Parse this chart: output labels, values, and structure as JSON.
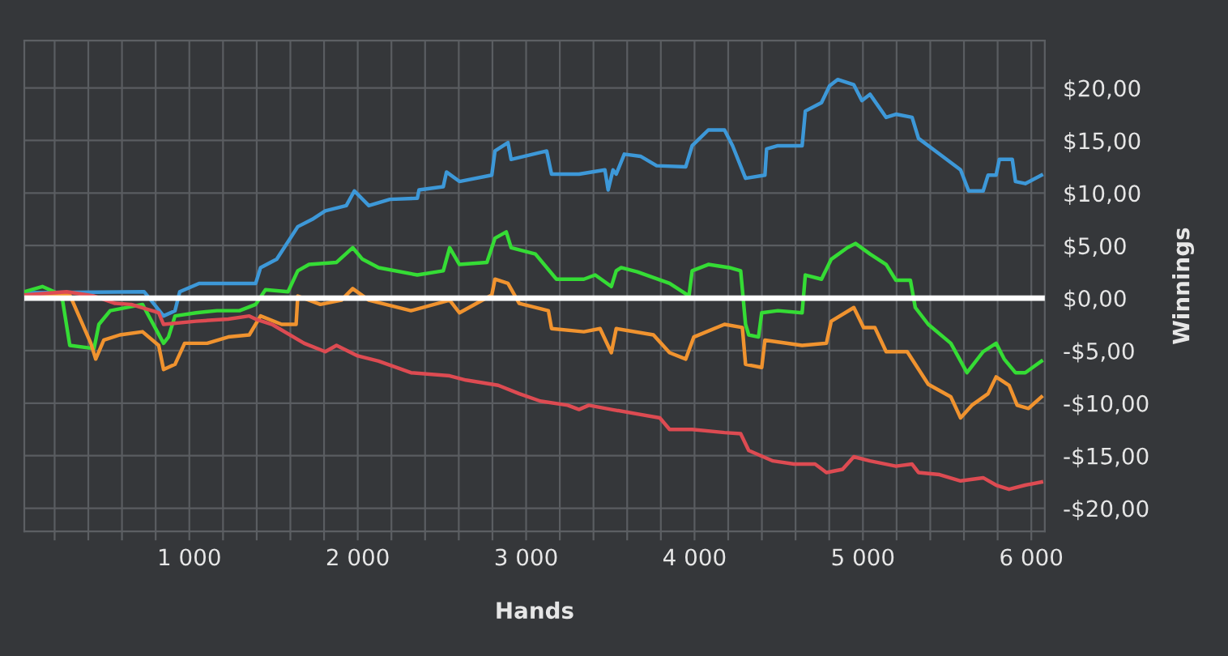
{
  "chart_data": {
    "type": "line",
    "xlabel": "Hands",
    "ylabel": "Winnings",
    "xlim": [
      20,
      6080
    ],
    "ylim": [
      -22.2,
      24.5
    ],
    "xticks": [
      {
        "value": 200,
        "label": null
      },
      {
        "value": 400,
        "label": null
      },
      {
        "value": 600,
        "label": null
      },
      {
        "value": 800,
        "label": null
      },
      {
        "value": 1000,
        "label": "1 000"
      },
      {
        "value": 1200,
        "label": null
      },
      {
        "value": 1400,
        "label": null
      },
      {
        "value": 1600,
        "label": null
      },
      {
        "value": 1800,
        "label": null
      },
      {
        "value": 2000,
        "label": "2 000"
      },
      {
        "value": 2200,
        "label": null
      },
      {
        "value": 2400,
        "label": null
      },
      {
        "value": 2600,
        "label": null
      },
      {
        "value": 2800,
        "label": null
      },
      {
        "value": 3000,
        "label": "3 000"
      },
      {
        "value": 3200,
        "label": null
      },
      {
        "value": 3400,
        "label": null
      },
      {
        "value": 3600,
        "label": null
      },
      {
        "value": 3800,
        "label": null
      },
      {
        "value": 4000,
        "label": "4 000"
      },
      {
        "value": 4200,
        "label": null
      },
      {
        "value": 4400,
        "label": null
      },
      {
        "value": 4600,
        "label": null
      },
      {
        "value": 4800,
        "label": null
      },
      {
        "value": 5000,
        "label": "5 000"
      },
      {
        "value": 5200,
        "label": null
      },
      {
        "value": 5400,
        "label": null
      },
      {
        "value": 5600,
        "label": null
      },
      {
        "value": 5800,
        "label": null
      },
      {
        "value": 6000,
        "label": "6 000"
      }
    ],
    "yticks": [
      {
        "value": -20,
        "label": "-$20,00"
      },
      {
        "value": -15,
        "label": "-$15,00"
      },
      {
        "value": -10,
        "label": "-$10,00"
      },
      {
        "value": -5,
        "label": "-$5,00"
      },
      {
        "value": 0,
        "label": "$0,00"
      },
      {
        "value": 5,
        "label": "$5,00"
      },
      {
        "value": 10,
        "label": "$10,00"
      },
      {
        "value": 15,
        "label": "$15,00"
      },
      {
        "value": 20,
        "label": "$20,00"
      }
    ],
    "grid": true,
    "legend": false,
    "ref_lines": [
      {
        "axis": "y",
        "value": 0,
        "color": "#ffffff"
      }
    ],
    "series": [
      {
        "color": "#3d98d8",
        "x": [
          20,
          732,
          847,
          915,
          943,
          1058,
          1394,
          1423,
          1519,
          1644,
          1730,
          1807,
          1932,
          1980,
          2066,
          2191,
          2354,
          2364,
          2508,
          2527,
          2604,
          2796,
          2815,
          2892,
          2911,
          3122,
          3151,
          3314,
          3468,
          3487,
          3516,
          3535,
          3583,
          3679,
          3775,
          3948,
          3986,
          4082,
          4178,
          4226,
          4303,
          4418,
          4428,
          4495,
          4639,
          4658,
          4754,
          4802,
          4850,
          4946,
          4994,
          5042,
          5138,
          5196,
          5292,
          5330,
          5455,
          5580,
          5628,
          5714,
          5743,
          5791,
          5810,
          5887,
          5906,
          5964,
          6060
        ],
        "values": [
          0.5,
          0.6,
          -1.7,
          -1.2,
          0.6,
          1.4,
          1.4,
          2.9,
          3.7,
          6.8,
          7.5,
          8.3,
          8.8,
          10.2,
          8.8,
          9.4,
          9.5,
          10.3,
          10.6,
          12.0,
          11.1,
          11.7,
          14.0,
          14.8,
          13.2,
          14.0,
          11.8,
          11.8,
          12.2,
          10.3,
          12.2,
          11.8,
          13.7,
          13.5,
          12.6,
          12.5,
          14.5,
          16.0,
          16.0,
          14.5,
          11.4,
          11.7,
          14.2,
          14.5,
          14.5,
          17.8,
          18.6,
          20.2,
          20.8,
          20.3,
          18.8,
          19.4,
          17.2,
          17.5,
          17.2,
          15.2,
          13.7,
          12.2,
          10.2,
          10.2,
          11.7,
          11.7,
          13.2,
          13.2,
          11.1,
          10.9,
          11.7
        ]
      },
      {
        "color": "#35dc35",
        "x": [
          20,
          127,
          242,
          290,
          434,
          463,
          530,
          722,
          847,
          876,
          915,
          1040,
          1164,
          1298,
          1394,
          1452,
          1586,
          1644,
          1711,
          1874,
          1970,
          2028,
          2124,
          2354,
          2508,
          2546,
          2604,
          2767,
          2815,
          2882,
          2911,
          3055,
          3180,
          3343,
          3410,
          3506,
          3535,
          3564,
          3660,
          3852,
          3967,
          3986,
          4082,
          4207,
          4274,
          4303,
          4322,
          4380,
          4399,
          4495,
          4639,
          4658,
          4754,
          4812,
          4908,
          4956,
          5042,
          5138,
          5196,
          5282,
          5311,
          5388,
          5522,
          5618,
          5714,
          5791,
          5839,
          5906,
          5964,
          6060
        ],
        "values": [
          0.6,
          1.1,
          0.3,
          -4.5,
          -4.8,
          -2.5,
          -1.2,
          -0.6,
          -4.3,
          -3.7,
          -1.7,
          -1.4,
          -1.2,
          -1.2,
          -0.6,
          0.8,
          0.6,
          2.6,
          3.2,
          3.4,
          4.8,
          3.7,
          2.9,
          2.2,
          2.6,
          4.8,
          3.2,
          3.4,
          5.7,
          6.3,
          4.8,
          4.2,
          1.8,
          1.8,
          2.2,
          1.1,
          2.6,
          2.9,
          2.5,
          1.4,
          0.2,
          2.6,
          3.2,
          2.9,
          2.6,
          -2.5,
          -3.5,
          -3.7,
          -1.4,
          -1.2,
          -1.4,
          2.2,
          1.8,
          3.7,
          4.8,
          5.2,
          4.2,
          3.2,
          1.7,
          1.7,
          -0.9,
          -2.5,
          -4.3,
          -7.1,
          -5.1,
          -4.3,
          -5.8,
          -7.1,
          -7.1,
          -6.0
        ]
      },
      {
        "color": "#f0932f",
        "x": [
          20,
          290,
          415,
          444,
          492,
          588,
          722,
          818,
          847,
          915,
          972,
          1106,
          1231,
          1356,
          1423,
          1548,
          1634,
          1644,
          1778,
          1903,
          1970,
          2066,
          2316,
          2546,
          2604,
          2796,
          2815,
          2892,
          2959,
          3132,
          3151,
          3343,
          3439,
          3506,
          3535,
          3756,
          3852,
          3948,
          3996,
          4178,
          4284,
          4303,
          4399,
          4418,
          4639,
          4783,
          4812,
          4946,
          5004,
          5071,
          5138,
          5263,
          5388,
          5522,
          5580,
          5647,
          5743,
          5791,
          5868,
          5916,
          5983,
          6060
        ],
        "values": [
          0.3,
          0.3,
          -4.3,
          -5.8,
          -4.0,
          -3.5,
          -3.2,
          -4.5,
          -6.8,
          -6.3,
          -4.3,
          -4.3,
          -3.7,
          -3.5,
          -1.7,
          -2.5,
          -2.5,
          0.2,
          -0.6,
          -0.2,
          0.9,
          -0.2,
          -1.2,
          -0.2,
          -1.4,
          0.3,
          1.8,
          1.4,
          -0.5,
          -1.2,
          -2.9,
          -3.2,
          -2.9,
          -5.2,
          -2.9,
          -3.5,
          -5.2,
          -5.8,
          -3.7,
          -2.5,
          -2.8,
          -6.3,
          -6.6,
          -4.0,
          -4.5,
          -4.3,
          -2.2,
          -0.9,
          -2.8,
          -2.8,
          -5.1,
          -5.1,
          -8.2,
          -9.4,
          -11.4,
          -10.2,
          -9.1,
          -7.5,
          -8.3,
          -10.2,
          -10.5,
          -9.4
        ]
      },
      {
        "color": "#dd4b52",
        "x": [
          20,
          271,
          434,
          559,
          655,
          818,
          847,
          1040,
          1231,
          1356,
          1394,
          1491,
          1682,
          1807,
          1874,
          2000,
          2124,
          2316,
          2546,
          2642,
          2834,
          2959,
          3084,
          3247,
          3314,
          3372,
          3506,
          3794,
          3852,
          3986,
          4178,
          4274,
          4322,
          4466,
          4591,
          4716,
          4783,
          4879,
          4946,
          5042,
          5196,
          5292,
          5330,
          5455,
          5580,
          5714,
          5791,
          5868,
          5964,
          6060
        ],
        "values": [
          0.3,
          0.6,
          0.2,
          -0.5,
          -0.6,
          -1.4,
          -2.5,
          -2.2,
          -2.0,
          -1.7,
          -2.0,
          -2.5,
          -4.3,
          -5.1,
          -4.5,
          -5.5,
          -6.0,
          -7.1,
          -7.4,
          -7.8,
          -8.3,
          -9.1,
          -9.8,
          -10.2,
          -10.6,
          -10.2,
          -10.6,
          -11.4,
          -12.5,
          -12.5,
          -12.8,
          -12.9,
          -14.5,
          -15.5,
          -15.8,
          -15.8,
          -16.6,
          -16.3,
          -15.1,
          -15.5,
          -16.0,
          -15.8,
          -16.6,
          -16.8,
          -17.4,
          -17.1,
          -17.8,
          -18.2,
          -17.8,
          -17.5
        ]
      }
    ]
  }
}
